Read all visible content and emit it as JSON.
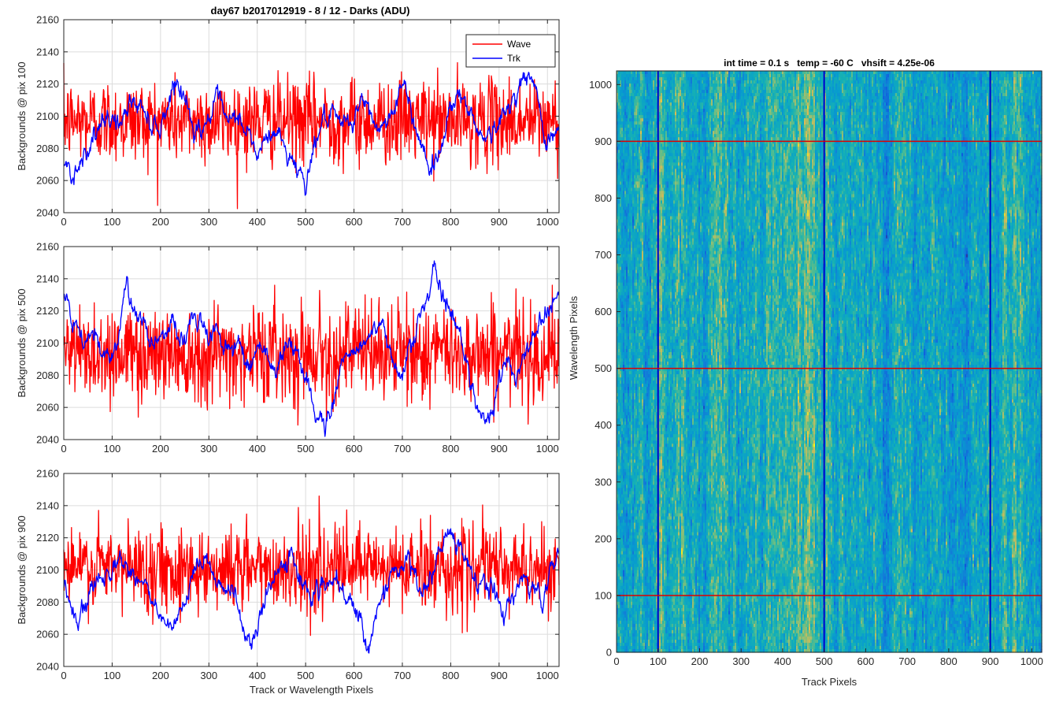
{
  "figure_title": "day67 b2017012919 - 8 / 12 - Darks (ADU)",
  "chart_data": [
    {
      "type": "line",
      "title": "day67 b2017012919 - 8 / 12 - Darks (ADU)",
      "xlabel": "",
      "ylabel": "Backgrounds @ pix 100",
      "xlim": [
        0,
        1024
      ],
      "ylim": [
        2040,
        2160
      ],
      "xticks": [
        0,
        100,
        200,
        300,
        400,
        500,
        600,
        700,
        800,
        900,
        1000
      ],
      "yticks": [
        2040,
        2060,
        2080,
        2100,
        2120,
        2140,
        2160
      ],
      "grid": true,
      "legend": "top-right",
      "series": [
        {
          "name": "Wave",
          "color": "#ff0000",
          "mean": 2097,
          "spread": 13,
          "min": 2042,
          "max": 2138
        },
        {
          "name": "Trk",
          "color": "#0000ff",
          "x": [
            0,
            20,
            50,
            80,
            100,
            120,
            140,
            160,
            180,
            200,
            215,
            230,
            250,
            270,
            300,
            320,
            340,
            360,
            380,
            400,
            420,
            440,
            460,
            480,
            500,
            520,
            540,
            560,
            580,
            600,
            620,
            640,
            660,
            680,
            700,
            720,
            740,
            760,
            780,
            800,
            820,
            840,
            860,
            880,
            900,
            920,
            940,
            960,
            980,
            1000,
            1024
          ],
          "values": [
            2070,
            2065,
            2082,
            2092,
            2100,
            2095,
            2110,
            2105,
            2098,
            2093,
            2108,
            2125,
            2112,
            2090,
            2100,
            2108,
            2092,
            2100,
            2090,
            2075,
            2085,
            2092,
            2078,
            2070,
            2060,
            2085,
            2100,
            2095,
            2093,
            2100,
            2110,
            2095,
            2093,
            2105,
            2120,
            2100,
            2085,
            2065,
            2080,
            2110,
            2115,
            2100,
            2092,
            2088,
            2095,
            2105,
            2120,
            2125,
            2110,
            2085,
            2092
          ]
        }
      ]
    },
    {
      "type": "line",
      "title": "",
      "xlabel": "",
      "ylabel": "Backgrounds @ pix 500",
      "xlim": [
        0,
        1024
      ],
      "ylim": [
        2040,
        2160
      ],
      "xticks": [
        0,
        100,
        200,
        300,
        400,
        500,
        600,
        700,
        800,
        900,
        1000
      ],
      "yticks": [
        2040,
        2060,
        2080,
        2100,
        2120,
        2140,
        2160
      ],
      "grid": true,
      "series": [
        {
          "name": "Wave",
          "color": "#ff0000",
          "mean": 2094,
          "spread": 15,
          "min": 2049,
          "max": 2136
        },
        {
          "name": "Trk",
          "color": "#0000ff",
          "x": [
            0,
            20,
            40,
            60,
            80,
            100,
            120,
            130,
            140,
            160,
            180,
            200,
            220,
            240,
            260,
            280,
            300,
            320,
            340,
            360,
            380,
            400,
            420,
            440,
            460,
            480,
            500,
            520,
            540,
            560,
            580,
            600,
            620,
            640,
            660,
            680,
            700,
            720,
            740,
            760,
            770,
            780,
            800,
            820,
            840,
            860,
            880,
            900,
            920,
            940,
            960,
            980,
            1000,
            1024
          ],
          "values": [
            2130,
            2110,
            2100,
            2105,
            2090,
            2095,
            2120,
            2140,
            2125,
            2110,
            2100,
            2105,
            2115,
            2100,
            2110,
            2115,
            2105,
            2108,
            2095,
            2100,
            2085,
            2100,
            2095,
            2080,
            2100,
            2095,
            2075,
            2060,
            2048,
            2070,
            2090,
            2095,
            2100,
            2110,
            2105,
            2090,
            2085,
            2100,
            2120,
            2135,
            2145,
            2130,
            2118,
            2110,
            2075,
            2060,
            2050,
            2075,
            2090,
            2085,
            2098,
            2110,
            2125,
            2130
          ]
        }
      ]
    },
    {
      "type": "line",
      "title": "",
      "xlabel": "Track or Wavelength Pixels",
      "ylabel": "Backgrounds @ pix 900",
      "xlim": [
        0,
        1024
      ],
      "ylim": [
        2040,
        2160
      ],
      "xticks": [
        0,
        100,
        200,
        300,
        400,
        500,
        600,
        700,
        800,
        900,
        1000
      ],
      "yticks": [
        2040,
        2060,
        2080,
        2100,
        2120,
        2140,
        2160
      ],
      "grid": true,
      "series": [
        {
          "name": "Wave",
          "color": "#ff0000",
          "mean": 2101,
          "spread": 13,
          "min": 2044,
          "max": 2146
        },
        {
          "name": "Trk",
          "color": "#0000ff",
          "x": [
            0,
            15,
            30,
            50,
            70,
            90,
            110,
            130,
            150,
            170,
            190,
            210,
            230,
            250,
            270,
            290,
            310,
            330,
            350,
            370,
            390,
            410,
            430,
            450,
            470,
            490,
            510,
            530,
            550,
            570,
            590,
            610,
            630,
            650,
            670,
            690,
            710,
            730,
            750,
            770,
            790,
            810,
            830,
            850,
            870,
            890,
            910,
            930,
            950,
            970,
            990,
            1010,
            1024
          ],
          "values": [
            2090,
            2075,
            2065,
            2080,
            2095,
            2100,
            2108,
            2102,
            2098,
            2090,
            2075,
            2065,
            2060,
            2080,
            2095,
            2110,
            2100,
            2090,
            2085,
            2065,
            2055,
            2075,
            2090,
            2100,
            2110,
            2095,
            2085,
            2088,
            2092,
            2085,
            2080,
            2070,
            2055,
            2078,
            2090,
            2100,
            2105,
            2095,
            2085,
            2105,
            2120,
            2115,
            2110,
            2090,
            2092,
            2088,
            2070,
            2085,
            2095,
            2090,
            2080,
            2100,
            2115
          ]
        }
      ]
    },
    {
      "type": "heatmap",
      "title": "int time = 0.1 s   temp = -60 C   vhsift = 4.25e-06",
      "xlabel": "Track Pixels",
      "ylabel": "Wavelength Pixels",
      "xlim": [
        0,
        1024
      ],
      "ylim": [
        0,
        1024
      ],
      "xticks": [
        0,
        100,
        200,
        300,
        400,
        500,
        600,
        700,
        800,
        900,
        1000
      ],
      "yticks": [
        0,
        100,
        200,
        300,
        400,
        500,
        600,
        700,
        800,
        900,
        1000
      ],
      "colormap": "parula",
      "vertical_lines": {
        "color": "#0000cc",
        "x": [
          100,
          500,
          900
        ]
      },
      "horizontal_lines": {
        "color": "#dd0000",
        "y": [
          100,
          500,
          900
        ]
      }
    }
  ]
}
